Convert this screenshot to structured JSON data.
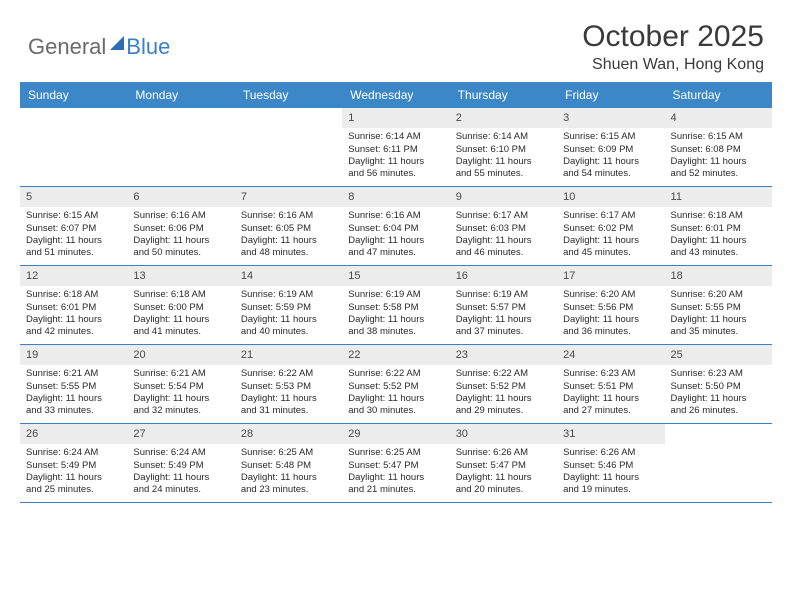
{
  "logo": {
    "part1": "General",
    "part2": "Blue"
  },
  "title": "October 2025",
  "location": "Shuen Wan, Hong Kong",
  "colors": {
    "header_bg": "#3b87c8",
    "header_text": "#ffffff",
    "row_border": "#3b7fc4",
    "daynum_bg": "#ececec",
    "text": "#2a2a2a",
    "logo_gray": "#6a6a6a",
    "logo_blue": "#3b7fc4"
  },
  "weekdays": [
    "Sunday",
    "Monday",
    "Tuesday",
    "Wednesday",
    "Thursday",
    "Friday",
    "Saturday"
  ],
  "weeks": [
    [
      {
        "day": "",
        "empty": true
      },
      {
        "day": "",
        "empty": true
      },
      {
        "day": "",
        "empty": true
      },
      {
        "day": "1",
        "sunrise": "Sunrise: 6:14 AM",
        "sunset": "Sunset: 6:11 PM",
        "daylight1": "Daylight: 11 hours",
        "daylight2": "and 56 minutes."
      },
      {
        "day": "2",
        "sunrise": "Sunrise: 6:14 AM",
        "sunset": "Sunset: 6:10 PM",
        "daylight1": "Daylight: 11 hours",
        "daylight2": "and 55 minutes."
      },
      {
        "day": "3",
        "sunrise": "Sunrise: 6:15 AM",
        "sunset": "Sunset: 6:09 PM",
        "daylight1": "Daylight: 11 hours",
        "daylight2": "and 54 minutes."
      },
      {
        "day": "4",
        "sunrise": "Sunrise: 6:15 AM",
        "sunset": "Sunset: 6:08 PM",
        "daylight1": "Daylight: 11 hours",
        "daylight2": "and 52 minutes."
      }
    ],
    [
      {
        "day": "5",
        "sunrise": "Sunrise: 6:15 AM",
        "sunset": "Sunset: 6:07 PM",
        "daylight1": "Daylight: 11 hours",
        "daylight2": "and 51 minutes."
      },
      {
        "day": "6",
        "sunrise": "Sunrise: 6:16 AM",
        "sunset": "Sunset: 6:06 PM",
        "daylight1": "Daylight: 11 hours",
        "daylight2": "and 50 minutes."
      },
      {
        "day": "7",
        "sunrise": "Sunrise: 6:16 AM",
        "sunset": "Sunset: 6:05 PM",
        "daylight1": "Daylight: 11 hours",
        "daylight2": "and 48 minutes."
      },
      {
        "day": "8",
        "sunrise": "Sunrise: 6:16 AM",
        "sunset": "Sunset: 6:04 PM",
        "daylight1": "Daylight: 11 hours",
        "daylight2": "and 47 minutes."
      },
      {
        "day": "9",
        "sunrise": "Sunrise: 6:17 AM",
        "sunset": "Sunset: 6:03 PM",
        "daylight1": "Daylight: 11 hours",
        "daylight2": "and 46 minutes."
      },
      {
        "day": "10",
        "sunrise": "Sunrise: 6:17 AM",
        "sunset": "Sunset: 6:02 PM",
        "daylight1": "Daylight: 11 hours",
        "daylight2": "and 45 minutes."
      },
      {
        "day": "11",
        "sunrise": "Sunrise: 6:18 AM",
        "sunset": "Sunset: 6:01 PM",
        "daylight1": "Daylight: 11 hours",
        "daylight2": "and 43 minutes."
      }
    ],
    [
      {
        "day": "12",
        "sunrise": "Sunrise: 6:18 AM",
        "sunset": "Sunset: 6:01 PM",
        "daylight1": "Daylight: 11 hours",
        "daylight2": "and 42 minutes."
      },
      {
        "day": "13",
        "sunrise": "Sunrise: 6:18 AM",
        "sunset": "Sunset: 6:00 PM",
        "daylight1": "Daylight: 11 hours",
        "daylight2": "and 41 minutes."
      },
      {
        "day": "14",
        "sunrise": "Sunrise: 6:19 AM",
        "sunset": "Sunset: 5:59 PM",
        "daylight1": "Daylight: 11 hours",
        "daylight2": "and 40 minutes."
      },
      {
        "day": "15",
        "sunrise": "Sunrise: 6:19 AM",
        "sunset": "Sunset: 5:58 PM",
        "daylight1": "Daylight: 11 hours",
        "daylight2": "and 38 minutes."
      },
      {
        "day": "16",
        "sunrise": "Sunrise: 6:19 AM",
        "sunset": "Sunset: 5:57 PM",
        "daylight1": "Daylight: 11 hours",
        "daylight2": "and 37 minutes."
      },
      {
        "day": "17",
        "sunrise": "Sunrise: 6:20 AM",
        "sunset": "Sunset: 5:56 PM",
        "daylight1": "Daylight: 11 hours",
        "daylight2": "and 36 minutes."
      },
      {
        "day": "18",
        "sunrise": "Sunrise: 6:20 AM",
        "sunset": "Sunset: 5:55 PM",
        "daylight1": "Daylight: 11 hours",
        "daylight2": "and 35 minutes."
      }
    ],
    [
      {
        "day": "19",
        "sunrise": "Sunrise: 6:21 AM",
        "sunset": "Sunset: 5:55 PM",
        "daylight1": "Daylight: 11 hours",
        "daylight2": "and 33 minutes."
      },
      {
        "day": "20",
        "sunrise": "Sunrise: 6:21 AM",
        "sunset": "Sunset: 5:54 PM",
        "daylight1": "Daylight: 11 hours",
        "daylight2": "and 32 minutes."
      },
      {
        "day": "21",
        "sunrise": "Sunrise: 6:22 AM",
        "sunset": "Sunset: 5:53 PM",
        "daylight1": "Daylight: 11 hours",
        "daylight2": "and 31 minutes."
      },
      {
        "day": "22",
        "sunrise": "Sunrise: 6:22 AM",
        "sunset": "Sunset: 5:52 PM",
        "daylight1": "Daylight: 11 hours",
        "daylight2": "and 30 minutes."
      },
      {
        "day": "23",
        "sunrise": "Sunrise: 6:22 AM",
        "sunset": "Sunset: 5:52 PM",
        "daylight1": "Daylight: 11 hours",
        "daylight2": "and 29 minutes."
      },
      {
        "day": "24",
        "sunrise": "Sunrise: 6:23 AM",
        "sunset": "Sunset: 5:51 PM",
        "daylight1": "Daylight: 11 hours",
        "daylight2": "and 27 minutes."
      },
      {
        "day": "25",
        "sunrise": "Sunrise: 6:23 AM",
        "sunset": "Sunset: 5:50 PM",
        "daylight1": "Daylight: 11 hours",
        "daylight2": "and 26 minutes."
      }
    ],
    [
      {
        "day": "26",
        "sunrise": "Sunrise: 6:24 AM",
        "sunset": "Sunset: 5:49 PM",
        "daylight1": "Daylight: 11 hours",
        "daylight2": "and 25 minutes."
      },
      {
        "day": "27",
        "sunrise": "Sunrise: 6:24 AM",
        "sunset": "Sunset: 5:49 PM",
        "daylight1": "Daylight: 11 hours",
        "daylight2": "and 24 minutes."
      },
      {
        "day": "28",
        "sunrise": "Sunrise: 6:25 AM",
        "sunset": "Sunset: 5:48 PM",
        "daylight1": "Daylight: 11 hours",
        "daylight2": "and 23 minutes."
      },
      {
        "day": "29",
        "sunrise": "Sunrise: 6:25 AM",
        "sunset": "Sunset: 5:47 PM",
        "daylight1": "Daylight: 11 hours",
        "daylight2": "and 21 minutes."
      },
      {
        "day": "30",
        "sunrise": "Sunrise: 6:26 AM",
        "sunset": "Sunset: 5:47 PM",
        "daylight1": "Daylight: 11 hours",
        "daylight2": "and 20 minutes."
      },
      {
        "day": "31",
        "sunrise": "Sunrise: 6:26 AM",
        "sunset": "Sunset: 5:46 PM",
        "daylight1": "Daylight: 11 hours",
        "daylight2": "and 19 minutes."
      },
      {
        "day": "",
        "empty": true
      }
    ]
  ]
}
